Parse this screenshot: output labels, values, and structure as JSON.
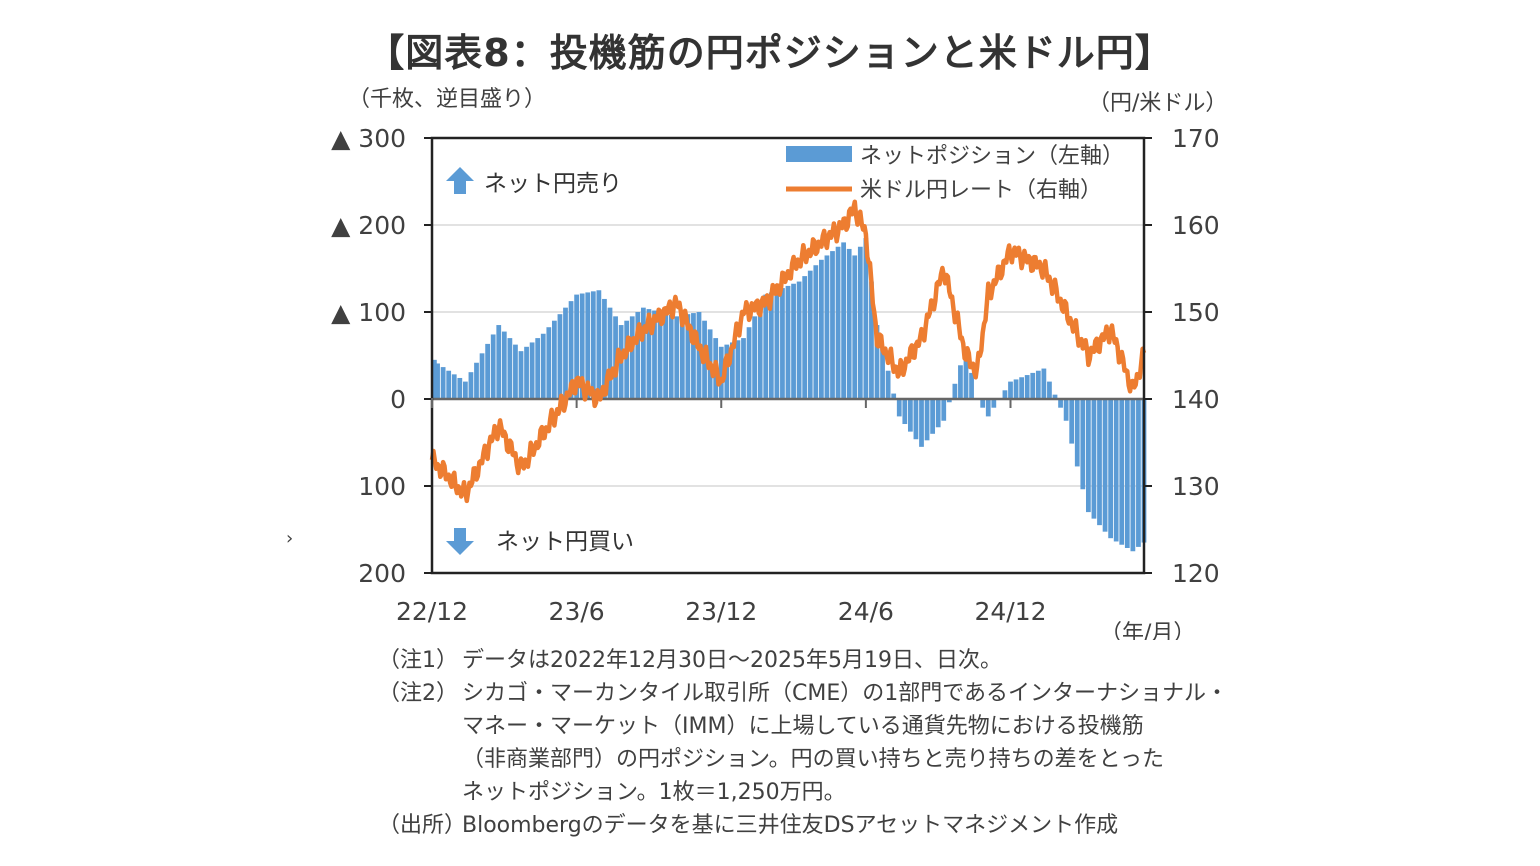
{
  "title": "【図表8：投機筋の円ポジションと米ドル円】",
  "stray_mark": "›",
  "chart_data": {
    "type": "bar+line",
    "left_axis": {
      "unit_label": "（千枚、逆目盛り）",
      "values": [
        300,
        200,
        100,
        0,
        -100,
        -200
      ],
      "tick_labels": [
        "▲ 300",
        "▲ 200",
        "▲ 100",
        "0",
        "100",
        "200"
      ],
      "range": [
        -200,
        300
      ],
      "note": "inverted: upward = net yen selling"
    },
    "right_axis": {
      "unit_label": "（円/米ドル）",
      "tick_labels": [
        "170",
        "160",
        "150",
        "140",
        "130",
        "120"
      ],
      "range": [
        120,
        170
      ]
    },
    "x_axis": {
      "unit_label": "（年/月）",
      "ticks": [
        {
          "label": "22/12",
          "t": 0
        },
        {
          "label": "23/6",
          "t": 26
        },
        {
          "label": "23/12",
          "t": 52
        },
        {
          "label": "24/6",
          "t": 78
        },
        {
          "label": "24/12",
          "t": 104
        }
      ]
    },
    "annotations": {
      "up": "ネット円売り",
      "down": "ネット円買い"
    },
    "legend": {
      "position": "top-right",
      "bar": "ネットポジション（左軸）",
      "line": "米ドル円レート（右軸）"
    },
    "colors": {
      "bar": "#5b9bd5",
      "line": "#ed7d31",
      "arrow": "#5b9bd5"
    },
    "gridlines": true,
    "series_t": [
      0,
      6,
      12,
      16,
      20,
      26,
      30,
      34,
      38,
      44,
      48,
      52,
      56,
      60,
      66,
      70,
      74,
      76,
      78,
      80,
      84,
      88,
      92,
      96,
      98,
      100,
      104,
      110,
      114,
      118,
      122,
      126,
      128
    ],
    "net_position": [
      45,
      20,
      85,
      55,
      75,
      120,
      125,
      85,
      105,
      95,
      100,
      60,
      70,
      120,
      135,
      160,
      180,
      165,
      185,
      85,
      -20,
      -55,
      -25,
      60,
      0,
      -20,
      20,
      35,
      -25,
      -130,
      -160,
      -175,
      -165
    ],
    "usdjpy": [
      133,
      129,
      137,
      132,
      136,
      142,
      140,
      145,
      148,
      151,
      146,
      142,
      150,
      151,
      156,
      158,
      160,
      162,
      159,
      147,
      143,
      147,
      155,
      145,
      143,
      152,
      157,
      155,
      150,
      145,
      148,
      141,
      145
    ]
  },
  "notes": [
    {
      "label": "（注1）",
      "lines": [
        "データは2022年12月30日～2025年5月19日、日次。"
      ]
    },
    {
      "label": "（注2）",
      "lines": [
        "シカゴ・マーカンタイル取引所（CME）の1部門であるインターナショナル・",
        "マネー・マーケット（IMM）に上場している通貨先物における投機筋",
        "（非商業部門）の円ポジション。円の買い持ちと売り持ちの差をとった",
        "ネットポジション。1枚＝1,250万円。"
      ]
    },
    {
      "label": "（出所）",
      "lines": [
        "Bloombergのデータを基に三井住友DSアセットマネジメント作成"
      ]
    }
  ]
}
